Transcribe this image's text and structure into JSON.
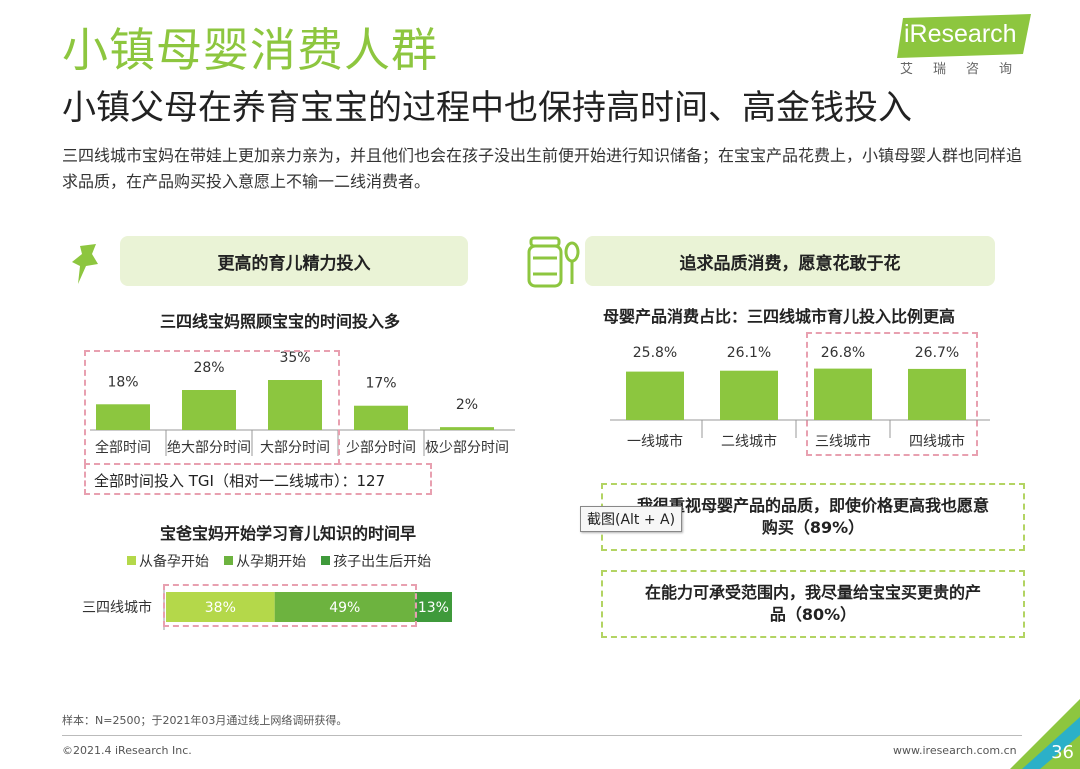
{
  "header": {
    "title": "小镇母婴消费人群",
    "subtitle": "小镇父母在养育宝宝的过程中也保持高时间、高金钱投入",
    "intro": "三四线城市宝妈在带娃上更加亲力亲为，并且他们也会在孩子没出生前便开始进行知识储备；在宝宝产品花费上，小镇母婴人群也同样追求品质，在产品购买投入意愿上不输一二线消费者。",
    "logo_text": "iResearch",
    "logo_sub": "艾瑞咨询"
  },
  "left_panel": {
    "banner": "更高的育儿精力投入",
    "icon": "pushpin-icon",
    "tgi_text": "全部时间投入 TGI（相对一二线城市）：127"
  },
  "right_panel": {
    "banner": "追求品质消费，愿意花敢于花",
    "icon": "baby-food-jar-icon",
    "quote1": "我很重视母婴产品的品质，即使价格更高我也愿意购买（89%）",
    "quote2": "在能力可承受范围内，我尽量给宝宝买更贵的产品（80%）"
  },
  "tooltip": "截图(Alt + A)",
  "footer": {
    "note": "样本：N=2500；于2021年03月通过线上网络调研获得。",
    "copyright": "©2021.4 iResearch Inc.",
    "website": "www.iresearch.com.cn",
    "page": "36"
  },
  "colors": {
    "brand_green": "#8dc63f",
    "bar_green": "#8cc63f",
    "mid_green": "#6db33f",
    "dark_green": "#3f9a3b",
    "highlight_red": "#e8a0b0"
  },
  "chart_data": [
    {
      "type": "bar",
      "title": "三四线宝妈照顾宝宝的时间投入多",
      "categories": [
        "全部时间",
        "绝大部分时间",
        "大部分时间",
        "少部分时间",
        "极少部分时间"
      ],
      "values": [
        18,
        28,
        35,
        17,
        2
      ],
      "labels": [
        "18%",
        "28%",
        "35%",
        "17%",
        "2%"
      ],
      "unit": "%"
    },
    {
      "type": "bar",
      "title": "宝爸宝妈开始学习育儿知识的时间早",
      "stacked": true,
      "orientation": "horizontal",
      "categories": [
        "三四线城市"
      ],
      "series": [
        {
          "name": "从备孕开始",
          "values": [
            38
          ],
          "label": "38%",
          "color": "#b4d84a"
        },
        {
          "name": "从孕期开始",
          "values": [
            49
          ],
          "label": "49%",
          "color": "#6db33f"
        },
        {
          "name": "孩子出生后开始",
          "values": [
            13
          ],
          "label": "13%",
          "color": "#3f9a3b"
        }
      ],
      "legend": "top"
    },
    {
      "type": "bar",
      "title": "母婴产品消费占比：三四线城市育儿投入比例更高",
      "categories": [
        "一线城市",
        "二线城市",
        "三线城市",
        "四线城市"
      ],
      "values": [
        25.8,
        26.1,
        26.8,
        26.7
      ],
      "labels": [
        "25.8%",
        "26.1%",
        "26.8%",
        "26.7%"
      ],
      "unit": "%"
    }
  ]
}
